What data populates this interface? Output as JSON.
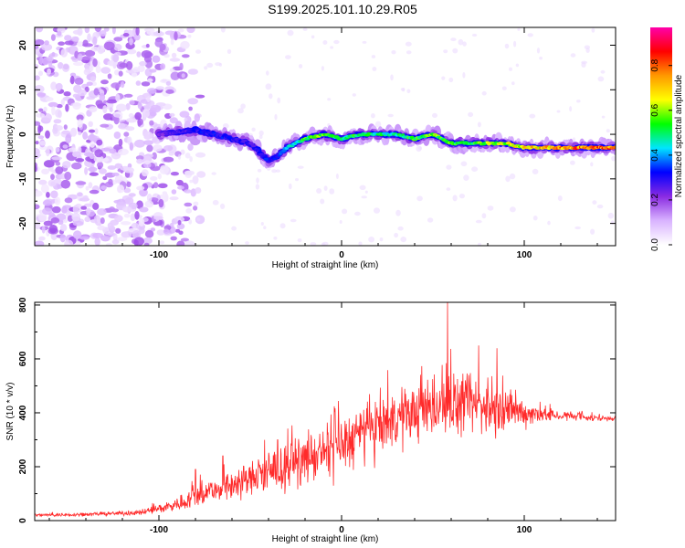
{
  "title": "S199.2025.101.10.29.R05",
  "chart_data": [
    {
      "type": "heatmap",
      "xlabel": "Height of straight line (km)",
      "ylabel": "Frequency (Hz)",
      "xlim": [
        -168,
        150
      ],
      "ylim": [
        -25,
        24
      ],
      "x_ticks": [
        -100,
        0,
        100
      ],
      "y_ticks": [
        -20,
        -10,
        0,
        10,
        20
      ],
      "colorbar": {
        "label": "Normalized spectral amplitude",
        "range": [
          0,
          0.97
        ],
        "ticks": [
          0.0,
          0.2,
          0.4,
          0.6,
          0.8
        ],
        "colors": [
          "#ffffff",
          "#d9b3ff",
          "#8a2be2",
          "#0000ff",
          "#00e5ff",
          "#00ff00",
          "#ffff00",
          "#ff9900",
          "#ff0000",
          "#ff00aa"
        ]
      },
      "ridge": {
        "x": [
          -100,
          -90,
          -80,
          -70,
          -60,
          -50,
          -45,
          -40,
          -35,
          -30,
          -25,
          -20,
          -10,
          0,
          10,
          20,
          30,
          40,
          50,
          60,
          70,
          80,
          90,
          100,
          110,
          120,
          130,
          140,
          150
        ],
        "freq": [
          0,
          0.5,
          1,
          0,
          -1,
          -2,
          -4,
          -6,
          -5,
          -3,
          -2,
          -1,
          0,
          -1,
          0,
          0,
          0,
          -1,
          0,
          -2,
          -2,
          -2,
          -2,
          -3,
          -3,
          -3,
          -3,
          -3,
          -3
        ],
        "amplitude": [
          0.25,
          0.3,
          0.35,
          0.35,
          0.35,
          0.3,
          0.35,
          0.35,
          0.35,
          0.45,
          0.55,
          0.6,
          0.65,
          0.55,
          0.6,
          0.55,
          0.55,
          0.6,
          0.65,
          0.6,
          0.6,
          0.65,
          0.7,
          0.75,
          0.8,
          0.85,
          0.9,
          0.9,
          0.9
        ]
      }
    },
    {
      "type": "line",
      "xlabel": "Height of straight line (km)",
      "ylabel": "SNR (10 * v/v)",
      "xlim": [
        -168,
        150
      ],
      "ylim": [
        0,
        810
      ],
      "x_ticks": [
        -100,
        0,
        100
      ],
      "y_ticks": [
        0,
        200,
        400,
        600,
        800
      ],
      "series": [
        {
          "color": "#ff2a2a",
          "x": [
            -168,
            -150,
            -130,
            -110,
            -100,
            -90,
            -80,
            -70,
            -60,
            -50,
            -40,
            -30,
            -20,
            -10,
            0,
            10,
            20,
            30,
            40,
            50,
            60,
            70,
            80,
            90,
            100,
            110,
            120,
            130,
            140,
            150
          ],
          "y": [
            20,
            22,
            25,
            30,
            45,
            60,
            90,
            115,
            135,
            155,
            175,
            200,
            225,
            250,
            280,
            315,
            350,
            380,
            400,
            420,
            430,
            430,
            420,
            410,
            400,
            395,
            390,
            385,
            380,
            380
          ],
          "spread": [
            8,
            10,
            10,
            15,
            25,
            40,
            60,
            75,
            85,
            95,
            105,
            115,
            125,
            140,
            150,
            160,
            160,
            150,
            150,
            155,
            165,
            160,
            150,
            120,
            80,
            45,
            30,
            25,
            20,
            15
          ],
          "peaks": [
            {
              "x": -80,
              "y": 190
            },
            {
              "x": -65,
              "y": 240
            },
            {
              "x": -35,
              "y": 300
            },
            {
              "x": 35,
              "y": 470
            },
            {
              "x": 58,
              "y": 810
            },
            {
              "x": 75,
              "y": 650
            },
            {
              "x": 85,
              "y": 640
            }
          ]
        }
      ]
    }
  ]
}
